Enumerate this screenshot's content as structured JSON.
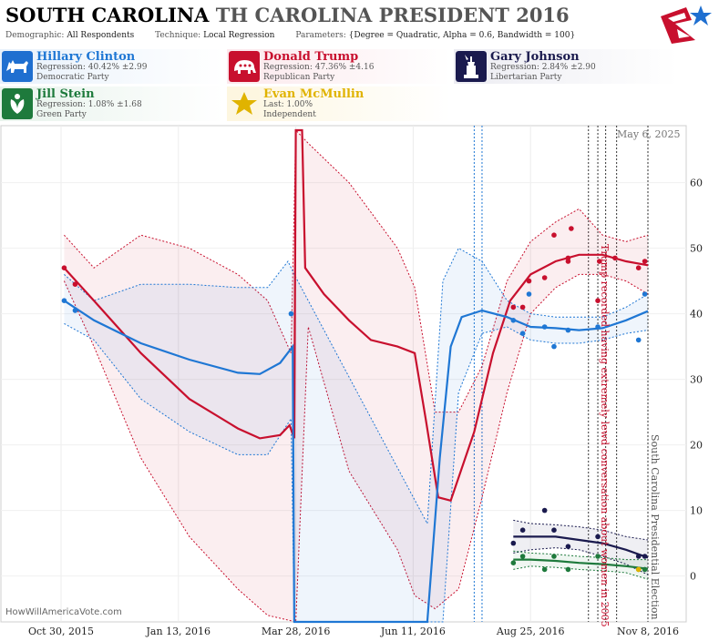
{
  "header": {
    "state": "SOUTH CAROLINA",
    "race": "TH CAROLINA PRESIDENT 2016",
    "demographic_label": "Demographic:",
    "demographic_value": "All Respondents",
    "technique_label": "Technique:",
    "technique_value": "Local Regression",
    "parameters_label": "Parameters:",
    "parameters_value": "{Degree = Quadratic, Alpha = 0.6, Bandwidth = 100}"
  },
  "candidates": [
    {
      "name": "Hillary Clinton",
      "stat": "Regression: 40.42% ±2.99",
      "party": "Democratic Party",
      "color": "#1f77d4",
      "bg": "#e8f1fb",
      "icon": "donkey-icon"
    },
    {
      "name": "Donald Trump",
      "stat": "Regression: 47.36% ±4.16",
      "party": "Republican Party",
      "color": "#c8102e",
      "bg": "#fbe8ec",
      "icon": "elephant-icon"
    },
    {
      "name": "Gary Johnson",
      "stat": "Regression: 2.84% ±2.90",
      "party": "Libertarian Party",
      "color": "#1a1a4e",
      "bg": "#ececf2",
      "icon": "liberty-statue-icon"
    },
    {
      "name": "Jill Stein",
      "stat": "Regression: 1.08% ±1.68",
      "party": "Green Party",
      "color": "#1e7a3c",
      "bg": "#e8f3ec",
      "icon": "green-leaf-icon"
    },
    {
      "name": "Evan McMullin",
      "stat": "Last: 1.00%",
      "party": "Independent",
      "color": "#e0b300",
      "bg": "#fdf6e0",
      "icon": "star-icon"
    }
  ],
  "watermark": "HowWillAmericaVote.com",
  "date_stamp": "May 6, 2025",
  "chart_data": {
    "type": "line",
    "title": "SOUTH CAROLINA TH CAROLINA PRESIDENT 2016",
    "x_ticks": [
      "Oct 30, 2015",
      "Jan 13, 2016",
      "Mar 28, 2016",
      "Jun 11, 2016",
      "Aug 25, 2016",
      "Nov 8, 2016"
    ],
    "x_domain": [
      "2015-10-30",
      "2016-11-08"
    ],
    "ylim": [
      -7,
      68
    ],
    "y_ticks": [
      0,
      10,
      20,
      30,
      40,
      50,
      60
    ],
    "annotations": [
      {
        "date": "2016-10-07",
        "text": "Trump recorded having extremely lewd conversation about women in 2005",
        "color": "#c8102e"
      },
      {
        "date": "2016-11-08",
        "text": "South Carolina Presidential Election",
        "color": "#555555"
      }
    ],
    "series": [
      {
        "name": "Donald Trump",
        "color": "#c8102e",
        "line": [
          [
            "2015-11-01",
            47
          ],
          [
            "2015-11-20",
            42
          ],
          [
            "2015-12-20",
            34
          ],
          [
            "2016-01-20",
            27
          ],
          [
            "2016-02-20",
            22.5
          ],
          [
            "2016-03-05",
            21
          ],
          [
            "2016-03-18",
            21.5
          ],
          [
            "2016-03-24",
            23
          ],
          [
            "2016-03-27",
            21
          ],
          [
            "2016-03-28",
            68
          ],
          [
            "2016-04-01",
            68
          ],
          [
            "2016-04-03",
            47
          ],
          [
            "2016-04-15",
            43
          ],
          [
            "2016-05-01",
            39
          ],
          [
            "2016-05-15",
            36
          ],
          [
            "2016-06-01",
            35
          ],
          [
            "2016-06-12",
            34
          ],
          [
            "2016-06-19",
            24
          ],
          [
            "2016-06-27",
            12
          ],
          [
            "2016-07-05",
            11.5
          ],
          [
            "2016-07-20",
            22
          ],
          [
            "2016-08-01",
            34
          ],
          [
            "2016-08-12",
            42
          ],
          [
            "2016-08-25",
            46
          ],
          [
            "2016-09-10",
            48
          ],
          [
            "2016-09-25",
            49
          ],
          [
            "2016-10-10",
            49
          ],
          [
            "2016-10-25",
            48
          ],
          [
            "2016-11-08",
            47.4
          ]
        ],
        "upper": [
          [
            "2015-11-01",
            52
          ],
          [
            "2015-11-20",
            47
          ],
          [
            "2015-12-20",
            52
          ],
          [
            "2016-01-20",
            50
          ],
          [
            "2016-02-20",
            46
          ],
          [
            "2016-03-10",
            42
          ],
          [
            "2016-03-25",
            34
          ],
          [
            "2016-03-28",
            68
          ],
          [
            "2016-04-05",
            66
          ],
          [
            "2016-05-01",
            60
          ],
          [
            "2016-06-01",
            50
          ],
          [
            "2016-06-12",
            44
          ],
          [
            "2016-06-25",
            25
          ],
          [
            "2016-07-10",
            25
          ],
          [
            "2016-07-25",
            32
          ],
          [
            "2016-08-10",
            45
          ],
          [
            "2016-08-25",
            51
          ],
          [
            "2016-09-10",
            54
          ],
          [
            "2016-09-25",
            56
          ],
          [
            "2016-10-10",
            52
          ],
          [
            "2016-10-25",
            51
          ],
          [
            "2016-11-08",
            52
          ]
        ],
        "lower": [
          [
            "2015-11-01",
            45
          ],
          [
            "2015-11-20",
            35
          ],
          [
            "2015-12-20",
            18
          ],
          [
            "2016-01-20",
            6
          ],
          [
            "2016-02-20",
            -2
          ],
          [
            "2016-03-10",
            -6
          ],
          [
            "2016-03-28",
            -7
          ],
          [
            "2016-04-05",
            38
          ],
          [
            "2016-05-01",
            16
          ],
          [
            "2016-06-01",
            4
          ],
          [
            "2016-06-12",
            -3
          ],
          [
            "2016-06-25",
            -5
          ],
          [
            "2016-07-10",
            -2
          ],
          [
            "2016-07-25",
            12
          ],
          [
            "2016-08-10",
            28
          ],
          [
            "2016-08-25",
            40
          ],
          [
            "2016-09-10",
            44
          ],
          [
            "2016-09-25",
            46
          ],
          [
            "2016-10-10",
            46
          ],
          [
            "2016-10-25",
            45
          ],
          [
            "2016-11-08",
            43
          ]
        ],
        "points": [
          [
            "2015-11-01",
            47
          ],
          [
            "2015-11-08",
            44.5
          ],
          [
            "2016-08-14",
            41
          ],
          [
            "2016-08-20",
            41
          ],
          [
            "2016-08-24",
            45
          ],
          [
            "2016-09-03",
            45.5
          ],
          [
            "2016-09-09",
            52
          ],
          [
            "2016-09-18",
            48
          ],
          [
            "2016-09-20",
            53
          ],
          [
            "2016-09-18",
            48.5
          ],
          [
            "2016-10-07",
            42
          ],
          [
            "2016-10-08",
            48
          ],
          [
            "2016-10-18",
            48.5
          ],
          [
            "2016-11-02",
            47
          ],
          [
            "2016-11-06",
            48
          ]
        ]
      },
      {
        "name": "Hillary Clinton",
        "color": "#1f77d4",
        "line": [
          [
            "2015-11-01",
            42
          ],
          [
            "2015-11-20",
            39
          ],
          [
            "2015-12-20",
            35.5
          ],
          [
            "2016-01-20",
            33
          ],
          [
            "2016-02-20",
            31
          ],
          [
            "2016-03-05",
            30.8
          ],
          [
            "2016-03-18",
            32.5
          ],
          [
            "2016-03-26",
            35
          ],
          [
            "2016-03-27",
            -7
          ],
          [
            "2016-06-20",
            -7
          ],
          [
            "2016-06-28",
            18
          ],
          [
            "2016-07-05",
            35
          ],
          [
            "2016-07-12",
            39.5
          ],
          [
            "2016-07-25",
            40.5
          ],
          [
            "2016-08-10",
            39.5
          ],
          [
            "2016-08-25",
            38
          ],
          [
            "2016-09-10",
            37.8
          ],
          [
            "2016-09-25",
            37.5
          ],
          [
            "2016-10-10",
            37.8
          ],
          [
            "2016-10-25",
            39
          ],
          [
            "2016-11-08",
            40.4
          ]
        ],
        "upper": [
          [
            "2015-11-01",
            46
          ],
          [
            "2015-11-20",
            42
          ],
          [
            "2015-12-20",
            44.5
          ],
          [
            "2016-01-20",
            44.5
          ],
          [
            "2016-02-20",
            44
          ],
          [
            "2016-03-10",
            44
          ],
          [
            "2016-03-23",
            48
          ],
          [
            "2016-03-27",
            46
          ],
          [
            "2016-06-20",
            8
          ],
          [
            "2016-06-30",
            45
          ],
          [
            "2016-07-10",
            50
          ],
          [
            "2016-07-25",
            48
          ],
          [
            "2016-08-10",
            42
          ],
          [
            "2016-08-25",
            40
          ],
          [
            "2016-09-10",
            39.5
          ],
          [
            "2016-09-25",
            39.5
          ],
          [
            "2016-10-10",
            39.5
          ],
          [
            "2016-10-25",
            41
          ],
          [
            "2016-11-08",
            43
          ]
        ],
        "lower": [
          [
            "2015-11-01",
            38.5
          ],
          [
            "2015-11-20",
            36
          ],
          [
            "2015-12-20",
            27
          ],
          [
            "2016-01-20",
            22
          ],
          [
            "2016-02-20",
            18.5
          ],
          [
            "2016-03-10",
            18.5
          ],
          [
            "2016-03-25",
            24
          ],
          [
            "2016-03-27",
            -7
          ],
          [
            "2016-06-20",
            -7
          ],
          [
            "2016-06-30",
            -7
          ],
          [
            "2016-07-10",
            28
          ],
          [
            "2016-07-25",
            37
          ],
          [
            "2016-08-10",
            38
          ],
          [
            "2016-08-25",
            36
          ],
          [
            "2016-09-10",
            35.5
          ],
          [
            "2016-09-25",
            35.5
          ],
          [
            "2016-10-10",
            36
          ],
          [
            "2016-10-25",
            37
          ],
          [
            "2016-11-08",
            37.5
          ]
        ],
        "points": [
          [
            "2015-11-01",
            42
          ],
          [
            "2015-11-08",
            40.5
          ],
          [
            "2016-03-25",
            40
          ],
          [
            "2016-08-14",
            39
          ],
          [
            "2016-08-20",
            37
          ],
          [
            "2016-08-24",
            43
          ],
          [
            "2016-09-03",
            38
          ],
          [
            "2016-09-09",
            35
          ],
          [
            "2016-09-18",
            37.5
          ],
          [
            "2016-10-07",
            38
          ],
          [
            "2016-11-02",
            36
          ],
          [
            "2016-11-06",
            43
          ]
        ]
      },
      {
        "name": "Gary Johnson",
        "color": "#1a1a4e",
        "line": [
          [
            "2016-08-14",
            6
          ],
          [
            "2016-08-25",
            6
          ],
          [
            "2016-09-10",
            6
          ],
          [
            "2016-09-25",
            5.5
          ],
          [
            "2016-10-10",
            5
          ],
          [
            "2016-10-25",
            4
          ],
          [
            "2016-11-08",
            2.8
          ]
        ],
        "upper": [
          [
            "2016-08-14",
            8.5
          ],
          [
            "2016-08-25",
            8
          ],
          [
            "2016-09-10",
            7.8
          ],
          [
            "2016-09-25",
            7.5
          ],
          [
            "2016-10-10",
            7
          ],
          [
            "2016-10-25",
            6
          ],
          [
            "2016-11-08",
            5.5
          ]
        ],
        "lower": [
          [
            "2016-08-14",
            3.5
          ],
          [
            "2016-08-25",
            4
          ],
          [
            "2016-09-10",
            4.3
          ],
          [
            "2016-09-25",
            4
          ],
          [
            "2016-10-10",
            3
          ],
          [
            "2016-10-25",
            1.8
          ],
          [
            "2016-11-08",
            0.2
          ]
        ],
        "points": [
          [
            "2016-08-14",
            5
          ],
          [
            "2016-08-20",
            7
          ],
          [
            "2016-09-03",
            10
          ],
          [
            "2016-09-09",
            7
          ],
          [
            "2016-09-18",
            4.5
          ],
          [
            "2016-10-07",
            6
          ],
          [
            "2016-11-02",
            3
          ],
          [
            "2016-11-06",
            3
          ]
        ]
      },
      {
        "name": "Jill Stein",
        "color": "#1e7a3c",
        "line": [
          [
            "2016-08-14",
            2.5
          ],
          [
            "2016-08-25",
            2.5
          ],
          [
            "2016-09-10",
            2.3
          ],
          [
            "2016-09-25",
            2
          ],
          [
            "2016-10-10",
            1.8
          ],
          [
            "2016-10-25",
            1.5
          ],
          [
            "2016-11-08",
            1.1
          ]
        ],
        "upper": [
          [
            "2016-08-14",
            3.8
          ],
          [
            "2016-08-25",
            3.5
          ],
          [
            "2016-09-10",
            3.3
          ],
          [
            "2016-09-25",
            3
          ],
          [
            "2016-10-10",
            2.8
          ],
          [
            "2016-10-25",
            2.5
          ],
          [
            "2016-11-08",
            2.5
          ]
        ],
        "lower": [
          [
            "2016-08-14",
            1
          ],
          [
            "2016-08-25",
            1.5
          ],
          [
            "2016-09-10",
            1.3
          ],
          [
            "2016-09-25",
            1
          ],
          [
            "2016-10-10",
            0.8
          ],
          [
            "2016-10-25",
            0.5
          ],
          [
            "2016-11-08",
            -0.5
          ]
        ],
        "points": [
          [
            "2016-08-14",
            2
          ],
          [
            "2016-08-20",
            3
          ],
          [
            "2016-09-03",
            1
          ],
          [
            "2016-09-09",
            3
          ],
          [
            "2016-09-18",
            1
          ],
          [
            "2016-10-07",
            3
          ],
          [
            "2016-11-02",
            1
          ],
          [
            "2016-11-06",
            1
          ]
        ]
      },
      {
        "name": "Evan McMullin",
        "color": "#e0b300",
        "line": [],
        "upper": [],
        "lower": [],
        "points": [
          [
            "2016-11-02",
            1
          ]
        ]
      }
    ],
    "event_lines": [
      {
        "date": "2016-07-20",
        "color": "#1f77d4"
      },
      {
        "date": "2016-07-25",
        "color": "#1f77d4"
      },
      {
        "date": "2016-10-01",
        "color": "#333333"
      },
      {
        "date": "2016-10-07",
        "color": "#333333"
      },
      {
        "date": "2016-10-12",
        "color": "#333333"
      },
      {
        "date": "2016-10-19",
        "color": "#333333"
      },
      {
        "date": "2016-11-08",
        "color": "#333333"
      }
    ]
  }
}
